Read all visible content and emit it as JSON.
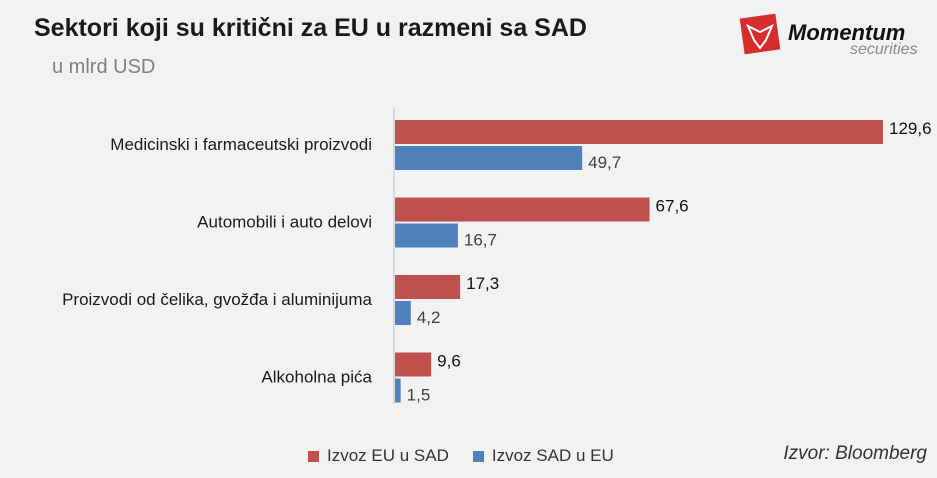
{
  "title": "Sektori koji su kritični za EU u razmeni sa SAD",
  "subtitle": "u mlrd USD",
  "logo": {
    "text": "Momentum",
    "subtext": "securities"
  },
  "source": "Izvor: Bloomberg",
  "chart_data": {
    "type": "bar",
    "orientation": "horizontal",
    "categories": [
      "Medicinski i farmaceutski proizvodi",
      "Automobili i auto delovi",
      "Proizvodi od čelika, gvožđa i aluminijuma",
      "Alkoholna pića"
    ],
    "series": [
      {
        "name": "Izvoz EU u SAD",
        "color": "#c0504d",
        "values": [
          129.6,
          67.6,
          17.3,
          9.6
        ],
        "labels": [
          "129,6",
          "67,6",
          "17,3",
          "9,6"
        ]
      },
      {
        "name": "Izvoz SAD u EU",
        "color": "#4f81bd",
        "values": [
          49.7,
          16.7,
          4.2,
          1.5
        ],
        "labels": [
          "49,7",
          "16,7",
          "4,2",
          "1,5"
        ]
      }
    ],
    "xlim": [
      0,
      130
    ],
    "grid": false,
    "legend": "bottom"
  }
}
